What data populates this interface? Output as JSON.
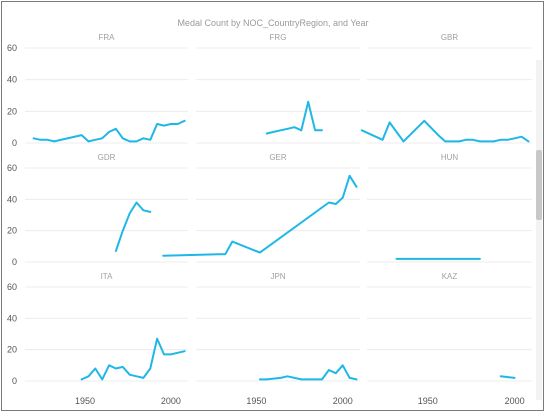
{
  "chart_data": {
    "type": "line",
    "title": "Medal Count by NOC_CountryRegion, and Year",
    "layout": "small-multiples 3x3",
    "xlim": [
      1915,
      2010
    ],
    "x_ticks": [
      1950,
      2000
    ],
    "ylim": [
      0,
      60
    ],
    "y_ticks": [
      0,
      20,
      40,
      60
    ],
    "grid": true,
    "line_color": "#1fb8e6",
    "panels": [
      {
        "name": "FRA",
        "x": [
          1920,
          1924,
          1928,
          1932,
          1948,
          1952,
          1956,
          1960,
          1964,
          1968,
          1972,
          1976,
          1980,
          1984,
          1988,
          1992,
          1996,
          2000,
          2004,
          2008
        ],
        "y": [
          3,
          2,
          2,
          1,
          5,
          1,
          2,
          3,
          7,
          9,
          3,
          1,
          1,
          3,
          2,
          12,
          11,
          12,
          12,
          14
        ]
      },
      {
        "name": "FRG",
        "x": [
          1956,
          1960,
          1964,
          1968,
          1972,
          1976,
          1980,
          1984,
          1988
        ],
        "y": [
          6,
          7,
          8,
          9,
          10,
          8,
          26,
          8,
          8
        ]
      },
      {
        "name": "GBR",
        "x": [
          1912,
          1920,
          1924,
          1928,
          1936,
          1948,
          1956,
          1960,
          1964,
          1968,
          1972,
          1976,
          1980,
          1984,
          1988,
          1992,
          1996,
          2000,
          2004,
          2008
        ],
        "y": [
          8,
          4,
          2,
          13,
          1,
          14,
          5,
          1,
          1,
          1,
          2,
          2,
          1,
          1,
          1,
          2,
          2,
          3,
          4,
          1
        ]
      },
      {
        "name": "GDR",
        "x": [
          1968,
          1972,
          1976,
          1980,
          1984,
          1988
        ],
        "y": [
          7,
          20,
          31,
          38,
          33,
          32
        ]
      },
      {
        "name": "GER",
        "x": [
          1896,
          1928,
          1932,
          1936,
          1952,
          1992,
          1996,
          2000,
          2004,
          2008
        ],
        "y": [
          4,
          5,
          5,
          13,
          6,
          38,
          37,
          41,
          55,
          48
        ]
      },
      {
        "name": "HUN",
        "x": [
          1932,
          1980
        ],
        "y": [
          2,
          2
        ]
      },
      {
        "name": "ITA",
        "x": [
          1948,
          1952,
          1956,
          1960,
          1964,
          1968,
          1972,
          1976,
          1980,
          1984,
          1988,
          1992,
          1996,
          2000,
          2004,
          2008
        ],
        "y": [
          1,
          3,
          8,
          1,
          10,
          8,
          9,
          4,
          3,
          2,
          8,
          27,
          17,
          17,
          18,
          19
        ]
      },
      {
        "name": "JPN",
        "x": [
          1952,
          1956,
          1964,
          1968,
          1976,
          1980,
          1984,
          1988,
          1992,
          1996,
          2000,
          2004,
          2008
        ],
        "y": [
          1,
          1,
          2,
          3,
          1,
          1,
          1,
          1,
          7,
          5,
          10,
          2,
          1
        ]
      },
      {
        "name": "KAZ",
        "x": [
          1992,
          2000
        ],
        "y": [
          3,
          2
        ]
      }
    ]
  }
}
